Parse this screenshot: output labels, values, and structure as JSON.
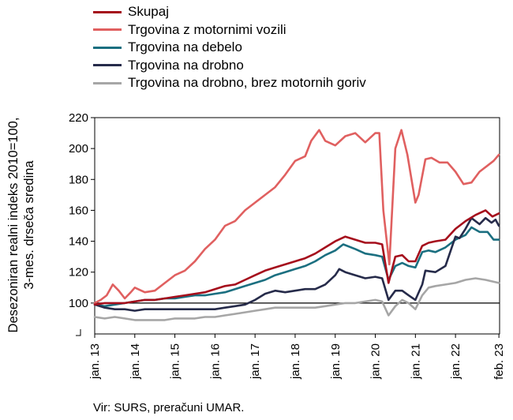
{
  "chart_data": {
    "type": "line",
    "ylabel": "Desezoniran realni indeks 2010=100,",
    "ylabel2": "3-mes. drseča sredina",
    "ylim": [
      80,
      220
    ],
    "yticks": [
      100,
      120,
      140,
      160,
      180,
      200,
      220
    ],
    "xlim": [
      2013.0,
      2023.1
    ],
    "x_ticks": [
      {
        "x": 2013,
        "label": "jan. 13"
      },
      {
        "x": 2014,
        "label": "jan. 14"
      },
      {
        "x": 2015,
        "label": "jan. 15"
      },
      {
        "x": 2016,
        "label": "jan. 16"
      },
      {
        "x": 2017,
        "label": "jan. 17"
      },
      {
        "x": 2018,
        "label": "jan. 18"
      },
      {
        "x": 2019,
        "label": "jan. 19"
      },
      {
        "x": 2020,
        "label": "jan. 20"
      },
      {
        "x": 2021,
        "label": "jan. 21"
      },
      {
        "x": 2022,
        "label": "jan. 22"
      },
      {
        "x": 2023.083,
        "label": "feb. 23"
      }
    ],
    "reference_line": 100,
    "grid": false,
    "legend_position": "top-left",
    "series": [
      {
        "name": "Skupaj",
        "color": "#a50e1c",
        "points": [
          [
            2013,
            99
          ],
          [
            2013.25,
            100
          ],
          [
            2013.5,
            100
          ],
          [
            2013.75,
            100
          ],
          [
            2014,
            101
          ],
          [
            2014.25,
            102
          ],
          [
            2014.5,
            102
          ],
          [
            2014.75,
            103
          ],
          [
            2015,
            104
          ],
          [
            2015.25,
            105
          ],
          [
            2015.5,
            106
          ],
          [
            2015.75,
            107
          ],
          [
            2016,
            109
          ],
          [
            2016.25,
            111
          ],
          [
            2016.5,
            112
          ],
          [
            2016.75,
            115
          ],
          [
            2017,
            118
          ],
          [
            2017.25,
            121
          ],
          [
            2017.5,
            123
          ],
          [
            2017.75,
            125
          ],
          [
            2018,
            127
          ],
          [
            2018.25,
            129
          ],
          [
            2018.5,
            132
          ],
          [
            2018.75,
            136
          ],
          [
            2019,
            140
          ],
          [
            2019.25,
            143
          ],
          [
            2019.5,
            141
          ],
          [
            2019.75,
            139
          ],
          [
            2020,
            139
          ],
          [
            2020.17,
            138
          ],
          [
            2020.33,
            113
          ],
          [
            2020.5,
            130
          ],
          [
            2020.67,
            131
          ],
          [
            2020.83,
            127
          ],
          [
            2021,
            127
          ],
          [
            2021.17,
            137
          ],
          [
            2021.33,
            139
          ],
          [
            2021.5,
            140
          ],
          [
            2021.75,
            141
          ],
          [
            2022,
            148
          ],
          [
            2022.25,
            153
          ],
          [
            2022.5,
            157
          ],
          [
            2022.75,
            160
          ],
          [
            2022.92,
            156
          ],
          [
            2023.083,
            158
          ]
        ]
      },
      {
        "name": "Trgovina z motornimi vozili",
        "color": "#e06060",
        "points": [
          [
            2013,
            100
          ],
          [
            2013.15,
            102
          ],
          [
            2013.3,
            105
          ],
          [
            2013.45,
            112
          ],
          [
            2013.6,
            108
          ],
          [
            2013.75,
            103
          ],
          [
            2013.9,
            107
          ],
          [
            2014,
            110
          ],
          [
            2014.25,
            107
          ],
          [
            2014.5,
            108
          ],
          [
            2014.75,
            113
          ],
          [
            2015,
            118
          ],
          [
            2015.25,
            121
          ],
          [
            2015.5,
            127
          ],
          [
            2015.75,
            135
          ],
          [
            2016,
            141
          ],
          [
            2016.25,
            150
          ],
          [
            2016.5,
            153
          ],
          [
            2016.75,
            160
          ],
          [
            2017,
            165
          ],
          [
            2017.25,
            170
          ],
          [
            2017.5,
            175
          ],
          [
            2017.75,
            183
          ],
          [
            2018,
            192
          ],
          [
            2018.25,
            195
          ],
          [
            2018.4,
            205
          ],
          [
            2018.6,
            212
          ],
          [
            2018.75,
            205
          ],
          [
            2019,
            202
          ],
          [
            2019.25,
            208
          ],
          [
            2019.5,
            210
          ],
          [
            2019.75,
            204
          ],
          [
            2020,
            210
          ],
          [
            2020.1,
            210
          ],
          [
            2020.2,
            160
          ],
          [
            2020.35,
            125
          ],
          [
            2020.5,
            200
          ],
          [
            2020.65,
            212
          ],
          [
            2020.8,
            196
          ],
          [
            2021,
            165
          ],
          [
            2021.08,
            170
          ],
          [
            2021.25,
            193
          ],
          [
            2021.4,
            194
          ],
          [
            2021.6,
            191
          ],
          [
            2021.8,
            191
          ],
          [
            2022,
            185
          ],
          [
            2022.2,
            177
          ],
          [
            2022.4,
            178
          ],
          [
            2022.6,
            185
          ],
          [
            2022.8,
            189
          ],
          [
            2022.95,
            192
          ],
          [
            2023.083,
            196
          ]
        ]
      },
      {
        "name": "Trgovina na debelo",
        "color": "#1b6f80",
        "points": [
          [
            2013,
            99
          ],
          [
            2013.25,
            98
          ],
          [
            2013.5,
            99
          ],
          [
            2013.75,
            100
          ],
          [
            2014,
            101
          ],
          [
            2014.25,
            102
          ],
          [
            2014.5,
            102
          ],
          [
            2014.75,
            103
          ],
          [
            2015,
            103
          ],
          [
            2015.25,
            104
          ],
          [
            2015.5,
            105
          ],
          [
            2015.75,
            105
          ],
          [
            2016,
            106
          ],
          [
            2016.25,
            107
          ],
          [
            2016.5,
            109
          ],
          [
            2016.75,
            111
          ],
          [
            2017,
            113
          ],
          [
            2017.25,
            115
          ],
          [
            2017.5,
            118
          ],
          [
            2017.75,
            120
          ],
          [
            2018,
            122
          ],
          [
            2018.25,
            124
          ],
          [
            2018.5,
            127
          ],
          [
            2018.75,
            131
          ],
          [
            2019,
            134
          ],
          [
            2019.2,
            138
          ],
          [
            2019.5,
            135
          ],
          [
            2019.75,
            132
          ],
          [
            2020,
            131
          ],
          [
            2020.17,
            130
          ],
          [
            2020.33,
            115
          ],
          [
            2020.5,
            124
          ],
          [
            2020.67,
            126
          ],
          [
            2020.83,
            124
          ],
          [
            2021,
            123
          ],
          [
            2021.17,
            133
          ],
          [
            2021.33,
            134
          ],
          [
            2021.5,
            133
          ],
          [
            2021.75,
            136
          ],
          [
            2022,
            141
          ],
          [
            2022.25,
            144
          ],
          [
            2022.4,
            149
          ],
          [
            2022.6,
            146
          ],
          [
            2022.8,
            146
          ],
          [
            2022.95,
            141
          ],
          [
            2023.083,
            141
          ]
        ]
      },
      {
        "name": "Trgovina na drobno",
        "color": "#262b4a",
        "points": [
          [
            2013,
            99
          ],
          [
            2013.25,
            97
          ],
          [
            2013.5,
            96
          ],
          [
            2013.75,
            96
          ],
          [
            2014,
            95
          ],
          [
            2014.25,
            96
          ],
          [
            2014.5,
            96
          ],
          [
            2014.75,
            96
          ],
          [
            2015,
            96
          ],
          [
            2015.25,
            96
          ],
          [
            2015.5,
            96
          ],
          [
            2015.75,
            96
          ],
          [
            2016,
            96
          ],
          [
            2016.25,
            97
          ],
          [
            2016.5,
            98
          ],
          [
            2016.75,
            99
          ],
          [
            2017,
            102
          ],
          [
            2017.25,
            106
          ],
          [
            2017.5,
            108
          ],
          [
            2017.75,
            107
          ],
          [
            2018,
            108
          ],
          [
            2018.25,
            109
          ],
          [
            2018.5,
            109
          ],
          [
            2018.75,
            112
          ],
          [
            2019,
            118
          ],
          [
            2019.1,
            122
          ],
          [
            2019.25,
            120
          ],
          [
            2019.5,
            118
          ],
          [
            2019.75,
            116
          ],
          [
            2020,
            117
          ],
          [
            2020.17,
            116
          ],
          [
            2020.33,
            102
          ],
          [
            2020.5,
            108
          ],
          [
            2020.67,
            108
          ],
          [
            2020.83,
            105
          ],
          [
            2021,
            102
          ],
          [
            2021.17,
            112
          ],
          [
            2021.25,
            121
          ],
          [
            2021.5,
            120
          ],
          [
            2021.75,
            124
          ],
          [
            2022,
            143
          ],
          [
            2022.1,
            142
          ],
          [
            2022.25,
            148
          ],
          [
            2022.4,
            155
          ],
          [
            2022.6,
            151
          ],
          [
            2022.75,
            155
          ],
          [
            2022.9,
            152
          ],
          [
            2023,
            154
          ],
          [
            2023.083,
            150
          ]
        ]
      },
      {
        "name": "Trgovina na drobno, brez motornih goriv",
        "color": "#a6a6a6",
        "points": [
          [
            2013,
            91
          ],
          [
            2013.25,
            90
          ],
          [
            2013.5,
            91
          ],
          [
            2013.75,
            90
          ],
          [
            2014,
            89
          ],
          [
            2014.25,
            89
          ],
          [
            2014.5,
            89
          ],
          [
            2014.75,
            89
          ],
          [
            2015,
            90
          ],
          [
            2015.25,
            90
          ],
          [
            2015.5,
            90
          ],
          [
            2015.75,
            91
          ],
          [
            2016,
            91
          ],
          [
            2016.25,
            92
          ],
          [
            2016.5,
            93
          ],
          [
            2016.75,
            94
          ],
          [
            2017,
            95
          ],
          [
            2017.25,
            96
          ],
          [
            2017.5,
            97
          ],
          [
            2017.75,
            97
          ],
          [
            2018,
            97
          ],
          [
            2018.25,
            97
          ],
          [
            2018.5,
            97
          ],
          [
            2018.75,
            98
          ],
          [
            2019,
            99
          ],
          [
            2019.25,
            100
          ],
          [
            2019.5,
            100
          ],
          [
            2019.75,
            101
          ],
          [
            2020,
            102
          ],
          [
            2020.17,
            101
          ],
          [
            2020.33,
            92
          ],
          [
            2020.5,
            98
          ],
          [
            2020.67,
            102
          ],
          [
            2020.83,
            100
          ],
          [
            2021,
            96
          ],
          [
            2021.17,
            105
          ],
          [
            2021.33,
            110
          ],
          [
            2021.5,
            111
          ],
          [
            2021.75,
            112
          ],
          [
            2022,
            113
          ],
          [
            2022.25,
            115
          ],
          [
            2022.5,
            116
          ],
          [
            2022.75,
            115
          ],
          [
            2023.083,
            113
          ]
        ]
      }
    ]
  },
  "source": "Vir: SURS, preračuni UMAR."
}
